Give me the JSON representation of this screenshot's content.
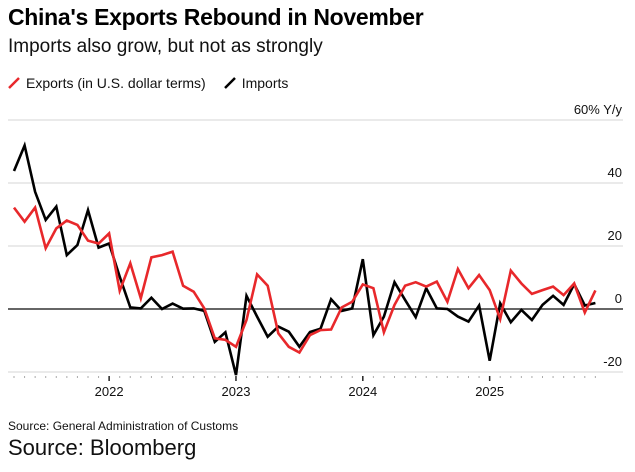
{
  "title": "China's Exports Rebound in November",
  "subtitle": "Imports also grow, but not as strongly",
  "source_line": "Source: General Administration of Customs",
  "source_footer": "Source: Bloomberg",
  "chart_data": {
    "type": "line",
    "title": "China's Exports Rebound in November",
    "ylabel": "% Y/y",
    "ylim": [
      -20,
      60
    ],
    "yticks": [
      -20,
      0,
      20,
      40,
      60
    ],
    "ytick_labels": [
      "-20",
      "0",
      "20",
      "40",
      "60% Y/y"
    ],
    "xtick_labels": [
      "2022",
      "2023",
      "2024",
      "2025"
    ],
    "grid": true,
    "legend": "top-left",
    "x": [
      "2021-04",
      "2021-05",
      "2021-06",
      "2021-07",
      "2021-08",
      "2021-09",
      "2021-10",
      "2021-11",
      "2021-12",
      "2022-01",
      "2022-02",
      "2022-03",
      "2022-04",
      "2022-05",
      "2022-06",
      "2022-07",
      "2022-08",
      "2022-09",
      "2022-10",
      "2022-11",
      "2022-12",
      "2023-01",
      "2023-02",
      "2023-03",
      "2023-04",
      "2023-05",
      "2023-06",
      "2023-07",
      "2023-08",
      "2023-09",
      "2023-10",
      "2023-11",
      "2023-12",
      "2024-01",
      "2024-02",
      "2024-03",
      "2024-04",
      "2024-05",
      "2024-06",
      "2024-07",
      "2024-08",
      "2024-09",
      "2024-10",
      "2024-11",
      "2024-12",
      "2025-01",
      "2025-02",
      "2025-03",
      "2025-04",
      "2025-05",
      "2025-06",
      "2025-07",
      "2025-08",
      "2025-09",
      "2025-10",
      "2025-11"
    ],
    "series": [
      {
        "name": "Exports (in U.S. dollar terms)",
        "color": "#e8282b",
        "values": [
          32.2,
          27.7,
          32.2,
          19.3,
          25.6,
          28.1,
          26.7,
          21.7,
          20.8,
          24.0,
          5.8,
          14.5,
          3.4,
          16.4,
          17.1,
          18.2,
          7.4,
          5.5,
          0.2,
          -9.3,
          -9.8,
          -12.0,
          -3.5,
          11.0,
          7.4,
          -7.7,
          -12.0,
          -13.8,
          -8.3,
          -6.7,
          -6.5,
          0.5,
          2.3,
          7.8,
          6.6,
          -7.4,
          1.3,
          7.4,
          8.5,
          7.1,
          8.7,
          2.3,
          12.7,
          6.6,
          10.8,
          6.0,
          -3.2,
          12.2,
          8.1,
          4.8,
          6.0,
          7.1,
          4.4,
          8.1,
          -1.1,
          5.9
        ]
      },
      {
        "name": "Imports",
        "color": "#000000",
        "values": [
          43.8,
          51.9,
          37.2,
          28.3,
          32.5,
          17.1,
          20.3,
          31.4,
          19.5,
          20.8,
          10.3,
          0.5,
          0.2,
          3.6,
          0.0,
          1.7,
          0.1,
          0.2,
          -0.6,
          -10.4,
          -7.4,
          -21.0,
          4.2,
          -2.4,
          -8.8,
          -5.6,
          -7.2,
          -12.0,
          -7.3,
          -6.3,
          3.1,
          -0.6,
          0.2,
          15.8,
          -8.3,
          -2.4,
          8.5,
          2.9,
          -2.6,
          6.6,
          0.2,
          0.0,
          -2.4,
          -4.0,
          1.1,
          -16.4,
          1.8,
          -4.2,
          -0.3,
          -3.5,
          1.3,
          4.2,
          1.3,
          7.9,
          1.1,
          1.9
        ]
      }
    ]
  }
}
